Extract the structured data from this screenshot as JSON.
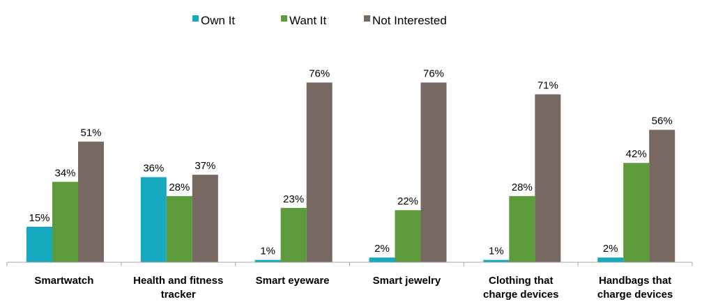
{
  "chart_data": {
    "type": "bar",
    "title": "",
    "xlabel": "",
    "ylabel": "",
    "ylim": [
      0,
      85
    ],
    "grid": false,
    "legend_position": "top-center",
    "categories": [
      [
        "Smartwatch"
      ],
      [
        "Health and fitness",
        "tracker"
      ],
      [
        "Smart eyeware"
      ],
      [
        "Smart jewelry"
      ],
      [
        "Clothing that",
        "charge devices"
      ],
      [
        "Handbags that",
        "charge devices"
      ]
    ],
    "series": [
      {
        "name": "Own It",
        "color": "#17a9bf",
        "values": [
          15,
          36,
          1,
          2,
          1,
          2
        ]
      },
      {
        "name": "Want It",
        "color": "#5c9a3c",
        "values": [
          34,
          28,
          23,
          22,
          28,
          42
        ]
      },
      {
        "name": "Not Interested",
        "color": "#776862",
        "values": [
          51,
          37,
          76,
          76,
          71,
          56
        ]
      }
    ],
    "value_suffix": "%"
  }
}
